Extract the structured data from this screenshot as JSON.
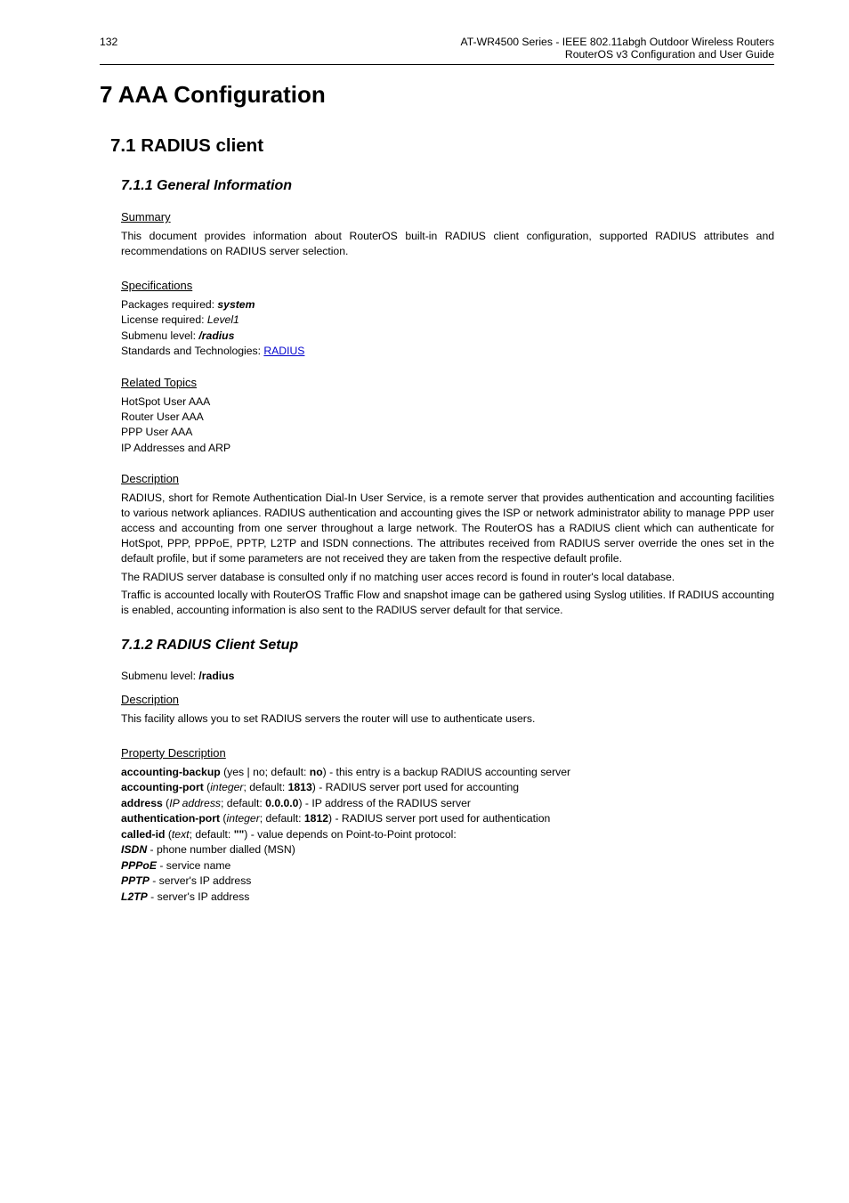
{
  "header": {
    "page_num": "132",
    "line1": "AT-WR4500 Series - IEEE 802.11abgh Outdoor Wireless Routers",
    "line2": "RouterOS v3 Configuration and User Guide"
  },
  "chapter": {
    "title": "7  AAA Configuration"
  },
  "sect_radius": {
    "title": "7.1 RADIUS client"
  },
  "sub_geninfo": {
    "title": "7.1.1 General Information",
    "summary": {
      "heading": "Summary",
      "text": "This document provides information about RouterOS built-in RADIUS client configuration, supported RADIUS attributes and recommendations on RADIUS server selection."
    },
    "specs": {
      "heading": "Specifications",
      "packages_label": "Packages required: ",
      "packages_val": "system",
      "license_label": "License required: ",
      "license_val": "Level1",
      "submenu_label": "Submenu level: ",
      "submenu_val": "/radius",
      "standards_label": "Standards and Technologies: ",
      "standards_link": "RADIUS"
    },
    "related": {
      "heading": "Related Topics",
      "t1": "HotSpot User AAA",
      "t2": "Router User AAA",
      "t3": "PPP User AAA",
      "t4": "IP Addresses and ARP"
    },
    "desc": {
      "heading": "Description",
      "p1": "RADIUS, short for Remote Authentication Dial-In User Service, is a remote server that provides authentication and accounting facilities to various network apliances. RADIUS authentication and accounting gives the ISP or network administrator ability to manage PPP user access and accounting from one server throughout a large network. The RouterOS has a RADIUS client which can authenticate for HotSpot, PPP, PPPoE, PPTP, L2TP and ISDN connections. The attributes received from RADIUS server override the ones set in the default profile, but if some parameters are not received they are taken from the respective default profile.",
      "p2": "The RADIUS server database is consulted only if no matching user acces record is found in router's local database.",
      "p3": "Traffic is accounted locally with RouterOS Traffic Flow and snapshot image can be gathered using Syslog utilities. If RADIUS accounting is enabled, accounting information is also sent to the RADIUS server default for that service."
    }
  },
  "sub_setup": {
    "title": "7.1.2 RADIUS Client Setup",
    "submenu_label": "Submenu level: ",
    "submenu_val": "/radius",
    "desc": {
      "heading": "Description",
      "text": "This facility allows you to set RADIUS servers the router will use to authenticate users."
    },
    "props": {
      "heading": "Property Description",
      "acct_backup_name": "accounting-backup",
      "acct_backup_rest": " (yes | no; default: ",
      "acct_backup_def": "no",
      "acct_backup_tail": ") - this entry is a backup RADIUS accounting server",
      "acct_port_name": "accounting-port",
      "acct_port_open": " (",
      "acct_port_type": "integer",
      "acct_port_mid": "; default: ",
      "acct_port_def": "1813",
      "acct_port_tail": ") - RADIUS server port used for accounting",
      "address_name": "address",
      "address_open": " (",
      "address_type": "IP address",
      "address_mid": "; default: ",
      "address_def": "0.0.0.0",
      "address_tail": ") - IP address of the RADIUS server",
      "auth_port_name": "authentication-port",
      "auth_port_open": " (",
      "auth_port_type": "integer",
      "auth_port_mid": "; default: ",
      "auth_port_def": "1812",
      "auth_port_tail": ") - RADIUS server port used for authentication",
      "called_id_name": "called-id",
      "called_id_open": " (",
      "called_id_type": "text",
      "called_id_mid": "; default: ",
      "called_id_def": "\"\"",
      "called_id_tail": ") - value depends on Point-to-Point protocol:",
      "isdn_name": "ISDN",
      "isdn_tail": " - phone number dialled (MSN)",
      "pppoe_name": "PPPoE",
      "pppoe_tail": " - service name",
      "pptp_name": "PPTP",
      "pptp_tail": " - server's IP address",
      "l2tp_name": "L2TP",
      "l2tp_tail": " - server's IP address"
    }
  }
}
